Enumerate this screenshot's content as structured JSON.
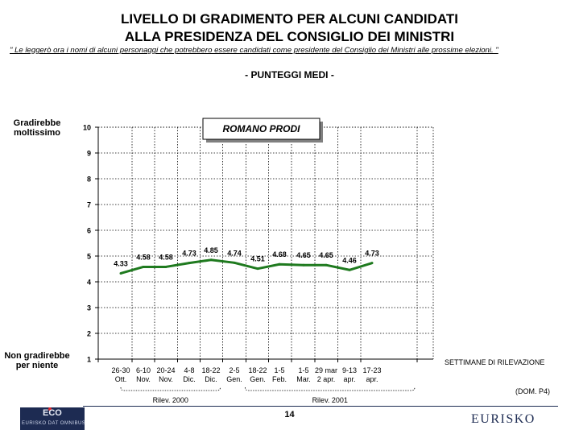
{
  "header": {
    "title_line1": "LIVELLO DI GRADIMENTO PER ALCUNI CANDIDATI",
    "title_line2": "ALLA PRESIDENZA DEL CONSIGLIO DEI MINISTRI",
    "note": "\" Le leggerò ora i nomi di alcuni personaggi che potrebbero essere candidati come presidente del Consiglio dei Ministri alle prossime elezioni. \"",
    "subtitle": "- PUNTEGGI MEDI -"
  },
  "axis_labels": {
    "top": "Gradirebbe moltissimo",
    "bottom": "Non gradirebbe per niente",
    "x": "SETTIMANE DI RILEVAZIONE"
  },
  "footer": {
    "source_code": "(DOM. P4)",
    "page_number": "14",
    "logo_left_big": "ECO",
    "logo_left_small": "EURISKO DAT OMNIBUS",
    "logo_right": "EURISKO"
  },
  "colors": {
    "line": "#1f7a1f",
    "navy": "#1d2b52"
  },
  "chart_data": {
    "type": "line",
    "title": "ROMANO PRODI",
    "categories": [
      [
        "26-30",
        "Ott."
      ],
      [
        "6-10",
        "Nov."
      ],
      [
        "20-24",
        "Nov."
      ],
      [
        "4-8",
        "Dic."
      ],
      [
        "18-22",
        "Dic."
      ],
      [
        "2-5",
        "Gen."
      ],
      [
        "18-22",
        "Gen."
      ],
      [
        "1-5",
        "Feb."
      ],
      [
        "1-5",
        "Mar."
      ],
      [
        "29 mar",
        "2 apr."
      ],
      [
        "9-13",
        "apr."
      ],
      [
        "17-23",
        "apr."
      ]
    ],
    "series": [
      {
        "values": [
          4.33,
          4.58,
          4.58,
          4.73,
          4.85,
          4.74,
          4.51,
          4.68,
          4.65,
          4.65,
          4.46,
          4.73
        ],
        "labels": [
          "4.33",
          "4.58",
          "4.58",
          "4.73",
          "4.85",
          "4.74",
          "4.51",
          "4.68",
          "4.65",
          "4.65",
          "4.46",
          "4.73"
        ]
      }
    ],
    "ylim": [
      1,
      10
    ],
    "yticks": [
      1,
      2,
      3,
      4,
      5,
      6,
      7,
      8,
      9,
      10
    ],
    "grid": true,
    "groups": [
      {
        "label": "Rilev. 2000",
        "from": 0,
        "to": 4
      },
      {
        "label": "Rilev. 2001",
        "from": 5,
        "to": 11
      }
    ]
  }
}
